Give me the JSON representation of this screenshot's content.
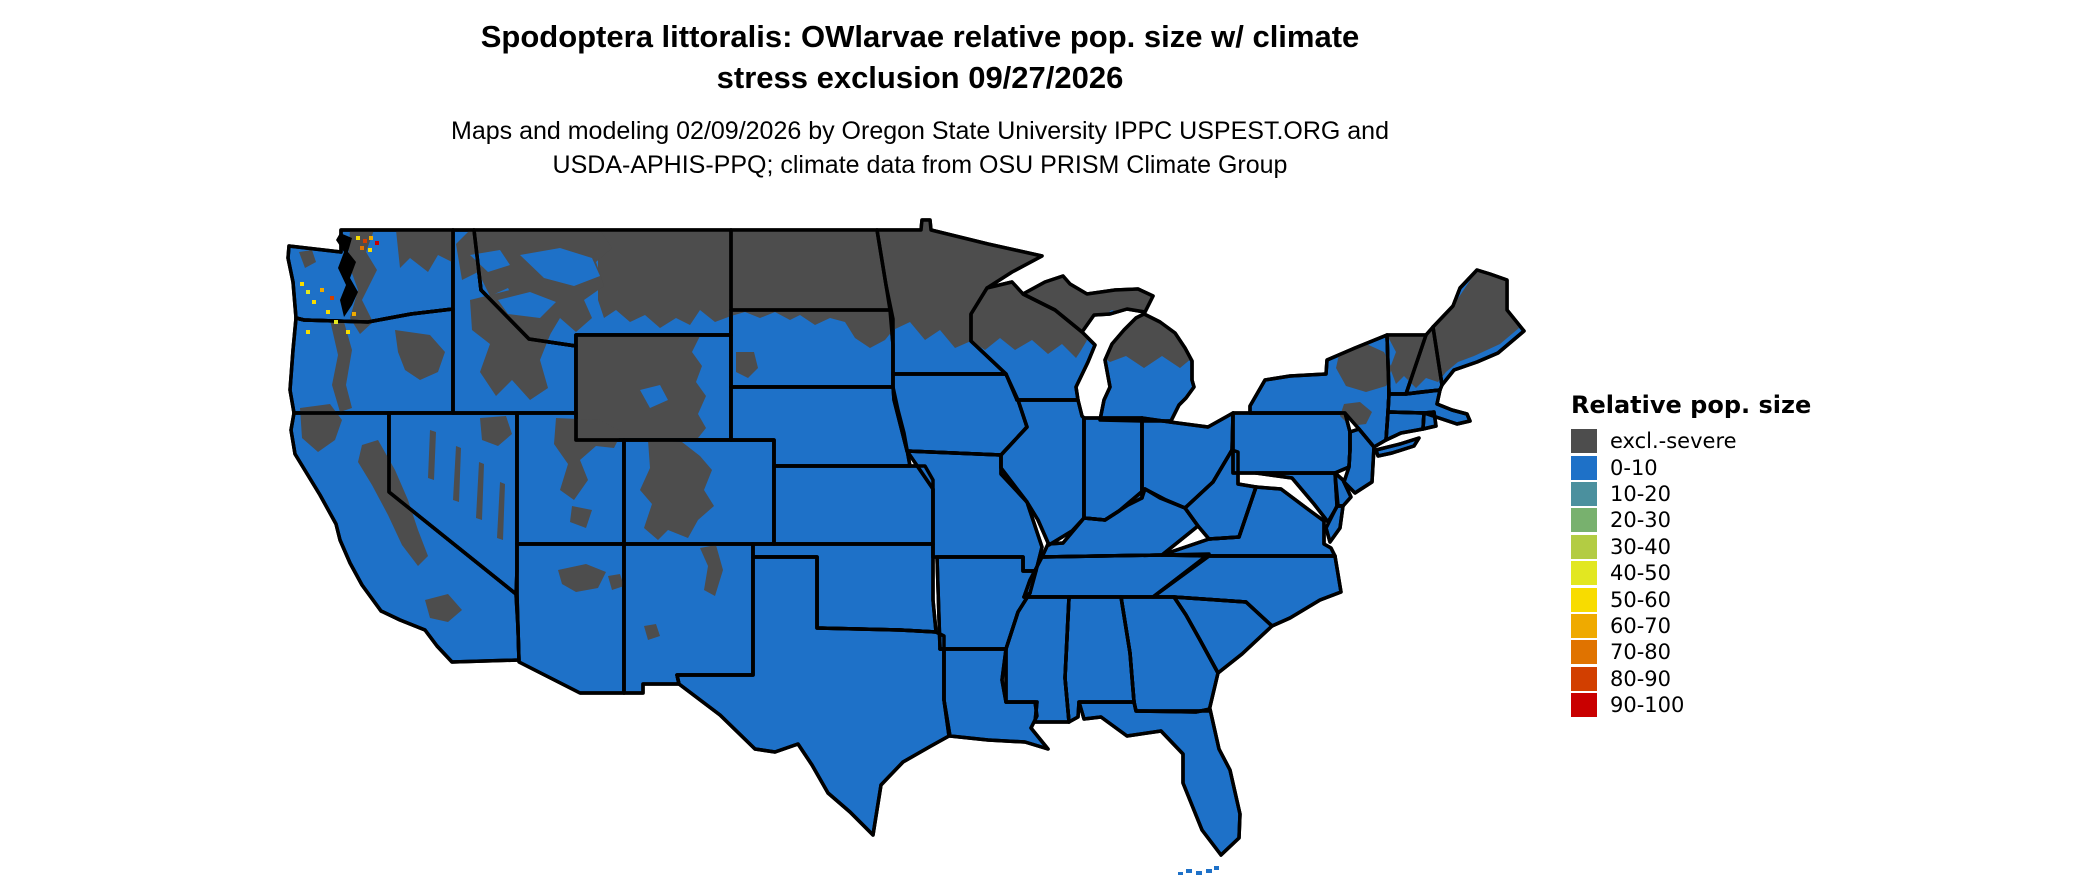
{
  "title": {
    "line1": "Spodoptera littoralis: OWlarvae relative pop. size w/ climate",
    "line2": "stress exclusion 09/27/2026"
  },
  "subtitle": {
    "line1": "Maps and modeling 02/09/2026 by Oregon State University IPPC USPEST.ORG and",
    "line2": "USDA-APHIS-PPQ; climate data from OSU PRISM Climate Group"
  },
  "legend": {
    "title": "Relative pop. size",
    "items": [
      {
        "label": "excl.-severe",
        "color": "#4D4D4D"
      },
      {
        "label": "0-10",
        "color": "#1E71C8"
      },
      {
        "label": "10-20",
        "color": "#4B909E"
      },
      {
        "label": "20-30",
        "color": "#78B16E"
      },
      {
        "label": "30-40",
        "color": "#B3CC43"
      },
      {
        "label": "40-50",
        "color": "#E2E721"
      },
      {
        "label": "50-60",
        "color": "#F8DC00"
      },
      {
        "label": "60-70",
        "color": "#EFAA00"
      },
      {
        "label": "70-80",
        "color": "#E07300"
      },
      {
        "label": "80-90",
        "color": "#D23F00"
      },
      {
        "label": "90-100",
        "color": "#C90000"
      }
    ]
  },
  "map": {
    "region": "Continental United States",
    "colors": {
      "blue": "#1E71C8",
      "gray": "#4D4D4D",
      "black": "#000000",
      "speck_yellow": "#F8DC00",
      "speck_lime": "#E2E721",
      "speck_amber": "#EFAA00",
      "speck_orange": "#E07300",
      "speck_vermilion": "#D23F00",
      "speck_red": "#C90000"
    },
    "dominant_class": "0-10",
    "excluded_class": "excl.-severe",
    "excluded_regions_visible": "Northern tier (eastern Montana, North Dakota, northern Minnesota/Wisconsin/Michigan, Maine, northern New England, Adirondacks) and western mountains (Cascades, Sierra Nevada, Idaho Rockies, Yellowstone/Wyoming, Utah, Colorado Rockies, Black Hills)",
    "warm_specks_visible": "Scattered 40-100 class pixels around Puget Sound, western Washington"
  }
}
